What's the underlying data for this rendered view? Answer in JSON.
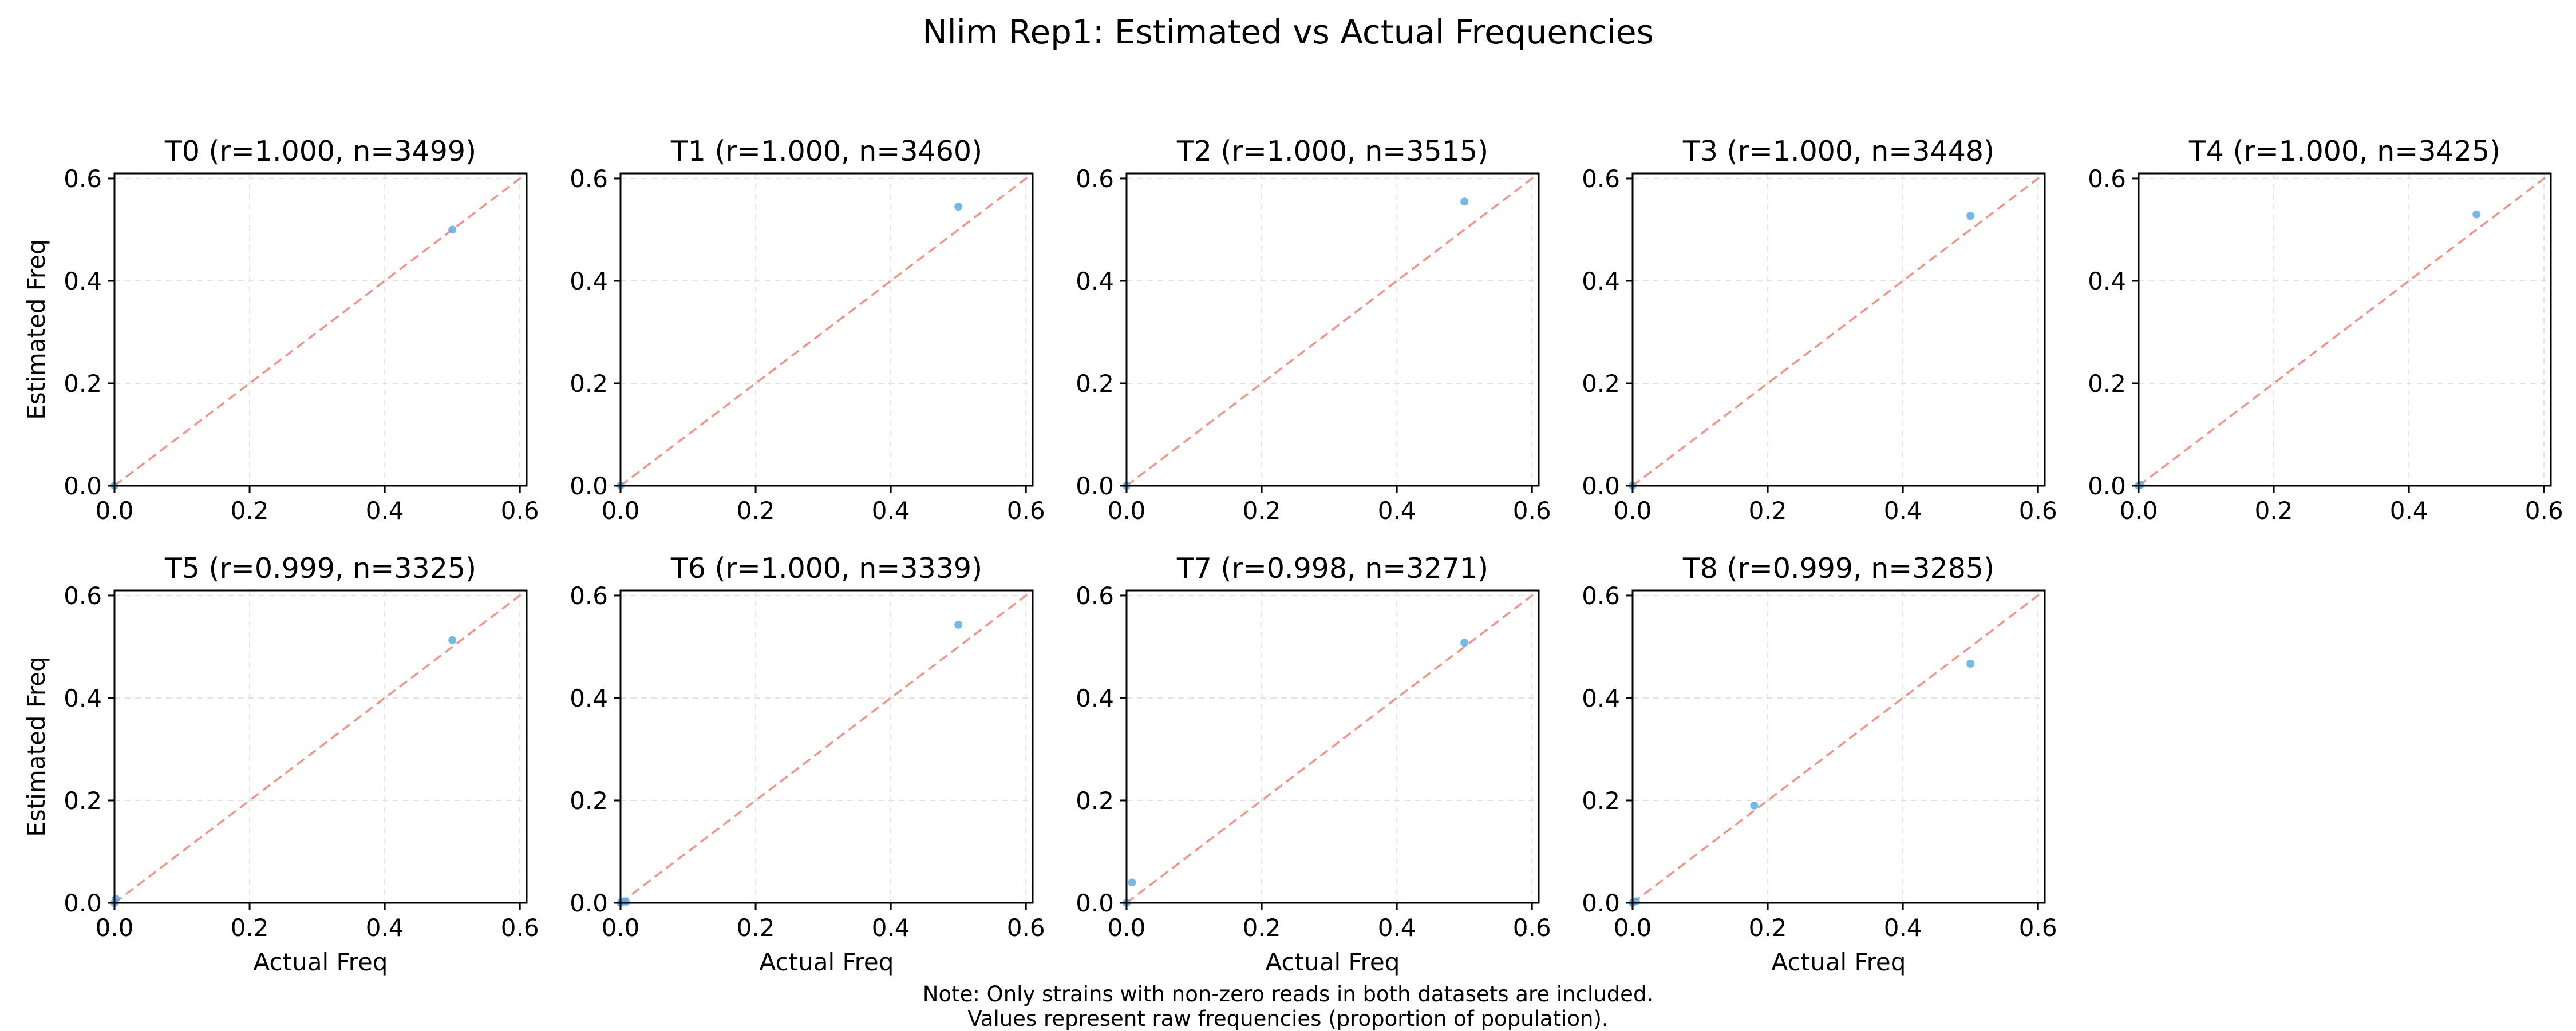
{
  "figure": {
    "title": "Nlim Rep1: Estimated vs Actual Frequencies",
    "notes": [
      "Note: Only strains with non-zero reads in both datasets are included.",
      "Values represent raw frequencies (proportion of population)."
    ],
    "colors": {
      "points": "#5dade2",
      "identity_line": "#f1948a",
      "grid": "#d9d9d9",
      "axes": "#000000"
    }
  },
  "chart_data": [
    {
      "type": "scatter",
      "title": "T0 (r=1.000, n=3499)",
      "xlabel": "",
      "ylabel": "Estimated Freq",
      "xlim": [
        0,
        0.61
      ],
      "ylim": [
        0,
        0.61
      ],
      "xticks": [
        "0.0",
        "0.2",
        "0.4",
        "0.6"
      ],
      "yticks": [
        "0.0",
        "0.2",
        "0.4",
        "0.6"
      ],
      "grid": true,
      "identity_line": true,
      "points": [
        {
          "x": 0.0,
          "y": 0.0
        },
        {
          "x": 0.5,
          "y": 0.5
        }
      ]
    },
    {
      "type": "scatter",
      "title": "T1 (r=1.000, n=3460)",
      "xlabel": "",
      "ylabel": "",
      "xlim": [
        0,
        0.61
      ],
      "ylim": [
        0,
        0.61
      ],
      "xticks": [
        "0.0",
        "0.2",
        "0.4",
        "0.6"
      ],
      "yticks": [
        "0.0",
        "0.2",
        "0.4",
        "0.6"
      ],
      "grid": true,
      "identity_line": true,
      "points": [
        {
          "x": 0.0,
          "y": 0.0
        },
        {
          "x": 0.5,
          "y": 0.545
        }
      ]
    },
    {
      "type": "scatter",
      "title": "T2 (r=1.000, n=3515)",
      "xlabel": "",
      "ylabel": "",
      "xlim": [
        0,
        0.61
      ],
      "ylim": [
        0,
        0.61
      ],
      "xticks": [
        "0.0",
        "0.2",
        "0.4",
        "0.6"
      ],
      "yticks": [
        "0.0",
        "0.2",
        "0.4",
        "0.6"
      ],
      "grid": true,
      "identity_line": true,
      "points": [
        {
          "x": 0.0,
          "y": 0.0
        },
        {
          "x": 0.5,
          "y": 0.555
        }
      ]
    },
    {
      "type": "scatter",
      "title": "T3 (r=1.000, n=3448)",
      "xlabel": "",
      "ylabel": "",
      "xlim": [
        0,
        0.61
      ],
      "ylim": [
        0,
        0.61
      ],
      "xticks": [
        "0.0",
        "0.2",
        "0.4",
        "0.6"
      ],
      "yticks": [
        "0.0",
        "0.2",
        "0.4",
        "0.6"
      ],
      "grid": true,
      "identity_line": true,
      "points": [
        {
          "x": 0.0,
          "y": 0.0
        },
        {
          "x": 0.5,
          "y": 0.527
        }
      ]
    },
    {
      "type": "scatter",
      "title": "T4 (r=1.000, n=3425)",
      "xlabel": "",
      "ylabel": "",
      "xlim": [
        0,
        0.61
      ],
      "ylim": [
        0,
        0.61
      ],
      "xticks": [
        "0.0",
        "0.2",
        "0.4",
        "0.6"
      ],
      "yticks": [
        "0.0",
        "0.2",
        "0.4",
        "0.6"
      ],
      "grid": true,
      "identity_line": true,
      "points": [
        {
          "x": 0.0,
          "y": 0.0
        },
        {
          "x": 0.003,
          "y": 0.002
        },
        {
          "x": 0.5,
          "y": 0.53
        }
      ]
    },
    {
      "type": "scatter",
      "title": "T5 (r=0.999, n=3325)",
      "xlabel": "Actual Freq",
      "ylabel": "Estimated Freq",
      "xlim": [
        0,
        0.61
      ],
      "ylim": [
        0,
        0.61
      ],
      "xticks": [
        "0.0",
        "0.2",
        "0.4",
        "0.6"
      ],
      "yticks": [
        "0.0",
        "0.2",
        "0.4",
        "0.6"
      ],
      "grid": true,
      "identity_line": true,
      "points": [
        {
          "x": 0.0,
          "y": 0.0
        },
        {
          "x": 0.002,
          "y": 0.008
        },
        {
          "x": 0.5,
          "y": 0.513
        }
      ]
    },
    {
      "type": "scatter",
      "title": "T6 (r=1.000, n=3339)",
      "xlabel": "Actual Freq",
      "ylabel": "",
      "xlim": [
        0,
        0.61
      ],
      "ylim": [
        0,
        0.61
      ],
      "xticks": [
        "0.0",
        "0.2",
        "0.4",
        "0.6"
      ],
      "yticks": [
        "0.0",
        "0.2",
        "0.4",
        "0.6"
      ],
      "grid": true,
      "identity_line": true,
      "points": [
        {
          "x": 0.0,
          "y": 0.0
        },
        {
          "x": 0.005,
          "y": 0.003
        },
        {
          "x": 0.008,
          "y": 0.002
        },
        {
          "x": 0.5,
          "y": 0.543
        }
      ]
    },
    {
      "type": "scatter",
      "title": "T7 (r=0.998, n=3271)",
      "xlabel": "Actual Freq",
      "ylabel": "",
      "xlim": [
        0,
        0.61
      ],
      "ylim": [
        0,
        0.61
      ],
      "xticks": [
        "0.0",
        "0.2",
        "0.4",
        "0.6"
      ],
      "yticks": [
        "0.0",
        "0.2",
        "0.4",
        "0.6"
      ],
      "grid": true,
      "identity_line": true,
      "points": [
        {
          "x": 0.0,
          "y": 0.0
        },
        {
          "x": 0.008,
          "y": 0.04
        },
        {
          "x": 0.5,
          "y": 0.508
        }
      ]
    },
    {
      "type": "scatter",
      "title": "T8 (r=0.999, n=3285)",
      "xlabel": "Actual Freq",
      "ylabel": "",
      "xlim": [
        0,
        0.61
      ],
      "ylim": [
        0,
        0.61
      ],
      "xticks": [
        "0.0",
        "0.2",
        "0.4",
        "0.6"
      ],
      "yticks": [
        "0.0",
        "0.2",
        "0.4",
        "0.6"
      ],
      "grid": true,
      "identity_line": true,
      "points": [
        {
          "x": 0.0,
          "y": 0.0
        },
        {
          "x": 0.005,
          "y": 0.003
        },
        {
          "x": 0.18,
          "y": 0.19
        },
        {
          "x": 0.5,
          "y": 0.467
        }
      ]
    }
  ]
}
